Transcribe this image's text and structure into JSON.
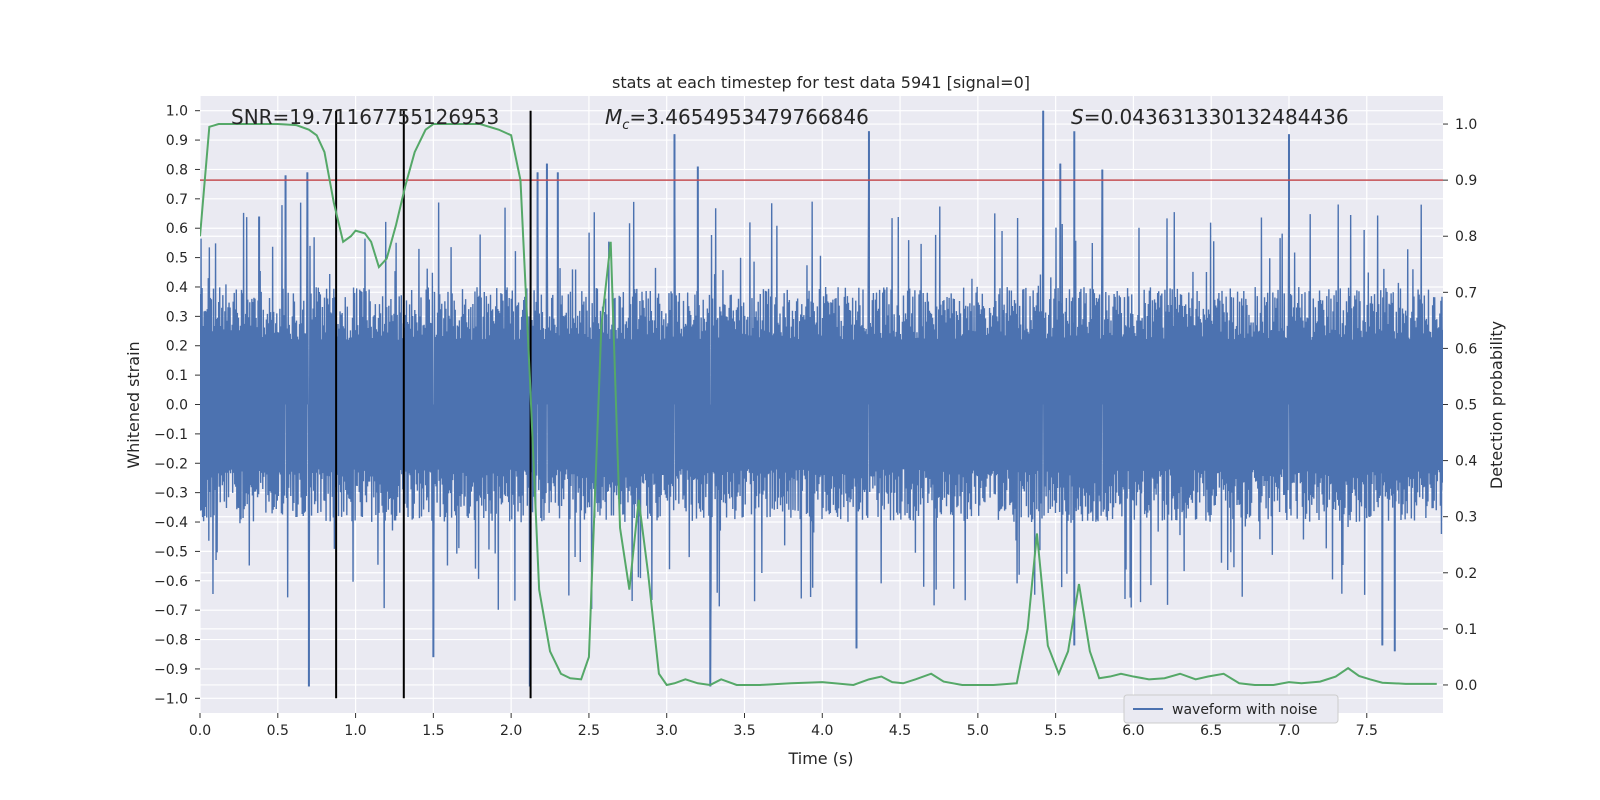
{
  "chart_data": {
    "type": "line",
    "title": "stats at each timestep for test data 5941 [signal=0]",
    "xlabel": "Time (s)",
    "ylabel_left": "Whitened strain",
    "ylabel_right": "Detection probability",
    "xlim": [
      0.0,
      7.99
    ],
    "ylim_left": [
      -1.05,
      1.05
    ],
    "ylim_right": [
      -0.05,
      1.05
    ],
    "x_ticks": [
      0.0,
      0.5,
      1.0,
      1.5,
      2.0,
      2.5,
      3.0,
      3.5,
      4.0,
      4.5,
      5.0,
      5.5,
      6.0,
      6.5,
      7.0,
      7.5
    ],
    "x_tick_labels": [
      "0.0",
      "0.5",
      "1.0",
      "1.5",
      "2.0",
      "2.5",
      "3.0",
      "3.5",
      "4.0",
      "4.5",
      "5.0",
      "5.5",
      "6.0",
      "6.5",
      "7.0",
      "7.5"
    ],
    "y_left_ticks": [
      -1.0,
      -0.9,
      -0.8,
      -0.7,
      -0.6,
      -0.5,
      -0.4,
      -0.3,
      -0.2,
      -0.1,
      0.0,
      0.1,
      0.2,
      0.3,
      0.4,
      0.5,
      0.6,
      0.7,
      0.8,
      0.9,
      1.0
    ],
    "y_left_tick_labels": [
      "−1.0",
      "−0.9",
      "−0.8",
      "−0.7",
      "−0.6",
      "−0.5",
      "−0.4",
      "−0.3",
      "−0.2",
      "−0.1",
      "0.0",
      "0.1",
      "0.2",
      "0.3",
      "0.4",
      "0.5",
      "0.6",
      "0.7",
      "0.8",
      "0.9",
      "1.0"
    ],
    "y_right_ticks": [
      0.0,
      0.1,
      0.2,
      0.3,
      0.4,
      0.5,
      0.6,
      0.7,
      0.8,
      0.9,
      1.0
    ],
    "y_right_tick_labels": [
      "0.0",
      "0.1",
      "0.2",
      "0.3",
      "0.4",
      "0.5",
      "0.6",
      "0.7",
      "0.8",
      "0.9",
      "1.0"
    ],
    "grid": true,
    "background_color": "#eaeaf2",
    "annotations": {
      "snr": "SNR=19.71167755126953",
      "mc_symbol": "M",
      "mc_subscript": "c",
      "mc_value": "=3.4654953479766846",
      "s_symbol": "S",
      "s_value": "=0.043631330132484436"
    },
    "threshold": {
      "axis": "right",
      "value": 0.9,
      "color": "#c44e52"
    },
    "vertical_lines": {
      "x": [
        0.875,
        1.31,
        2.125
      ],
      "color": "#000000"
    },
    "waveform": {
      "name": "waveform with noise",
      "color": "#4c72b0",
      "axis": "left",
      "duration": 8.0,
      "typical_envelope": [
        -0.4,
        0.4
      ],
      "notable_peaks": [
        {
          "x": 0.38,
          "y": 0.64
        },
        {
          "x": 0.55,
          "y": 0.78
        },
        {
          "x": 0.69,
          "y": 0.79
        },
        {
          "x": 2.17,
          "y": 0.79
        },
        {
          "x": 2.23,
          "y": 0.82
        },
        {
          "x": 2.3,
          "y": 0.79
        },
        {
          "x": 3.05,
          "y": 0.92
        },
        {
          "x": 3.2,
          "y": 0.81
        },
        {
          "x": 4.3,
          "y": 0.93
        },
        {
          "x": 5.42,
          "y": 1.0
        },
        {
          "x": 5.53,
          "y": 0.82
        },
        {
          "x": 5.62,
          "y": 0.93
        },
        {
          "x": 5.8,
          "y": 0.8
        },
        {
          "x": 7.0,
          "y": 0.92
        }
      ],
      "notable_troughs": [
        {
          "x": 0.7,
          "y": -0.96
        },
        {
          "x": 1.5,
          "y": -0.86
        },
        {
          "x": 2.12,
          "y": -0.96
        },
        {
          "x": 3.28,
          "y": -0.96
        },
        {
          "x": 4.22,
          "y": -0.83
        },
        {
          "x": 5.62,
          "y": -0.82
        },
        {
          "x": 7.6,
          "y": -0.82
        },
        {
          "x": 7.68,
          "y": -0.84
        }
      ]
    },
    "probability_series": {
      "color": "#55a868",
      "axis": "right",
      "x": [
        0.0,
        0.06,
        0.12,
        0.25,
        0.5,
        0.62,
        0.7,
        0.75,
        0.8,
        0.86,
        0.92,
        0.97,
        1.0,
        1.06,
        1.1,
        1.15,
        1.2,
        1.26,
        1.32,
        1.38,
        1.45,
        1.5,
        1.6,
        1.8,
        1.92,
        2.0,
        2.06,
        2.12,
        2.18,
        2.25,
        2.32,
        2.38,
        2.45,
        2.5,
        2.58,
        2.64,
        2.7,
        2.76,
        2.82,
        2.88,
        2.95,
        3.0,
        3.05,
        3.12,
        3.2,
        3.28,
        3.35,
        3.45,
        3.6,
        3.8,
        4.0,
        4.2,
        4.3,
        4.38,
        4.45,
        4.52,
        4.6,
        4.7,
        4.78,
        4.9,
        5.1,
        5.25,
        5.32,
        5.38,
        5.45,
        5.52,
        5.58,
        5.65,
        5.72,
        5.78,
        5.85,
        5.92,
        6.0,
        6.1,
        6.2,
        6.3,
        6.4,
        6.48,
        6.58,
        6.68,
        6.78,
        6.9,
        7.0,
        7.08,
        7.2,
        7.3,
        7.38,
        7.45,
        7.52,
        7.6,
        7.75,
        7.95
      ],
      "y": [
        0.8,
        0.995,
        1.0,
        1.0,
        1.0,
        0.998,
        0.99,
        0.98,
        0.95,
        0.86,
        0.79,
        0.8,
        0.81,
        0.805,
        0.79,
        0.745,
        0.76,
        0.82,
        0.89,
        0.95,
        0.99,
        1.0,
        1.0,
        1.0,
        0.99,
        0.98,
        0.9,
        0.55,
        0.17,
        0.06,
        0.02,
        0.012,
        0.01,
        0.05,
        0.64,
        0.79,
        0.28,
        0.17,
        0.33,
        0.2,
        0.02,
        0.0,
        0.003,
        0.01,
        0.003,
        0.0,
        0.01,
        0.0,
        0.0,
        0.003,
        0.005,
        0.0,
        0.01,
        0.015,
        0.005,
        0.003,
        0.01,
        0.02,
        0.006,
        0.0,
        0.0,
        0.003,
        0.1,
        0.27,
        0.07,
        0.02,
        0.06,
        0.18,
        0.06,
        0.012,
        0.015,
        0.02,
        0.015,
        0.01,
        0.012,
        0.02,
        0.01,
        0.015,
        0.02,
        0.003,
        0.0,
        0.0,
        0.005,
        0.003,
        0.006,
        0.015,
        0.03,
        0.016,
        0.01,
        0.004,
        0.002,
        0.002
      ]
    },
    "legend": {
      "position": "lower-right",
      "entries": [
        "waveform with noise"
      ]
    }
  }
}
